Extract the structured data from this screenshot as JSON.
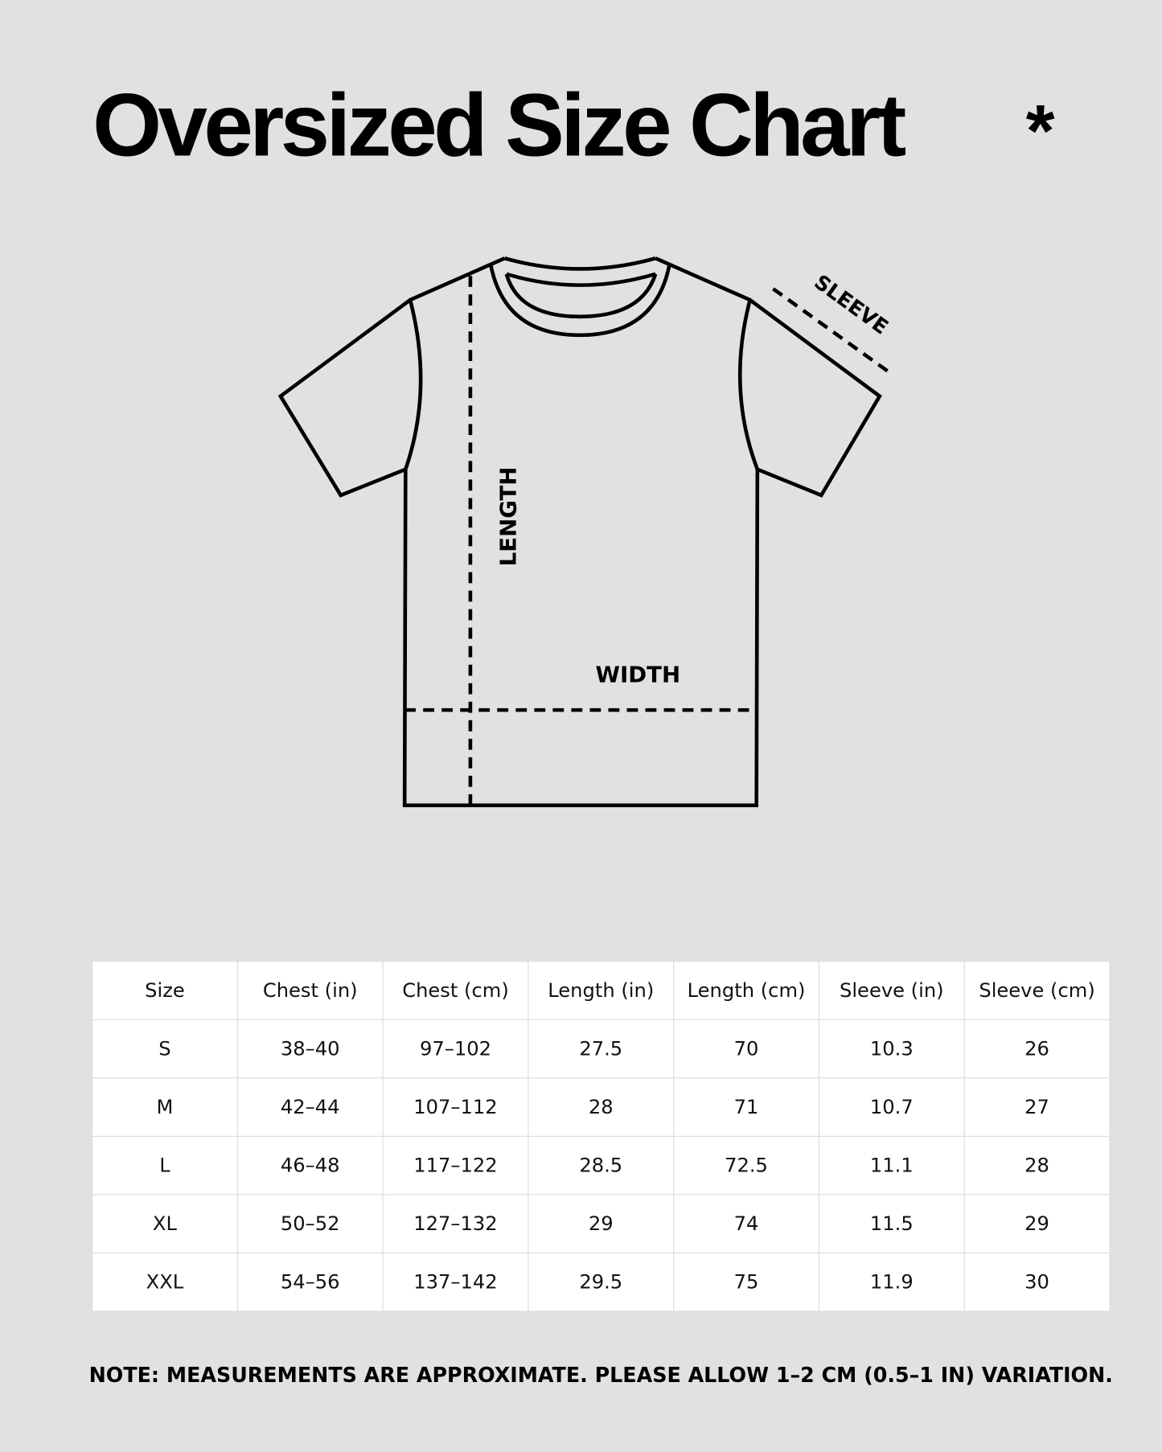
{
  "title": "Oversized Size Chart",
  "asterisk": "*",
  "diagram": {
    "length_label": "LENGTH",
    "width_label": "WIDTH",
    "sleeve_label": "SLEEVE"
  },
  "table": {
    "headers": [
      "Size",
      "Chest (in)",
      "Chest (cm)",
      "Length (in)",
      "Length (cm)",
      "Sleeve (in)",
      "Sleeve (cm)"
    ],
    "rows": [
      [
        "S",
        "38–40",
        "97–102",
        "27.5",
        "70",
        "10.3",
        "26"
      ],
      [
        "M",
        "42–44",
        "107–112",
        "28",
        "71",
        "10.7",
        "27"
      ],
      [
        "L",
        "46–48",
        "117–122",
        "28.5",
        "72.5",
        "11.1",
        "28"
      ],
      [
        "XL",
        "50–52",
        "127–132",
        "29",
        "74",
        "11.5",
        "29"
      ],
      [
        "XXL",
        "54–56",
        "137–142",
        "29.5",
        "75",
        "11.9",
        "30"
      ]
    ]
  },
  "note": "NOTE: MEASUREMENTS ARE APPROXIMATE. PLEASE ALLOW 1–2 CM (0.5–1 IN) VARIATION.",
  "colors": {
    "background": "#e1e1e1",
    "table_background": "#ffffff",
    "ink": "#000000"
  }
}
